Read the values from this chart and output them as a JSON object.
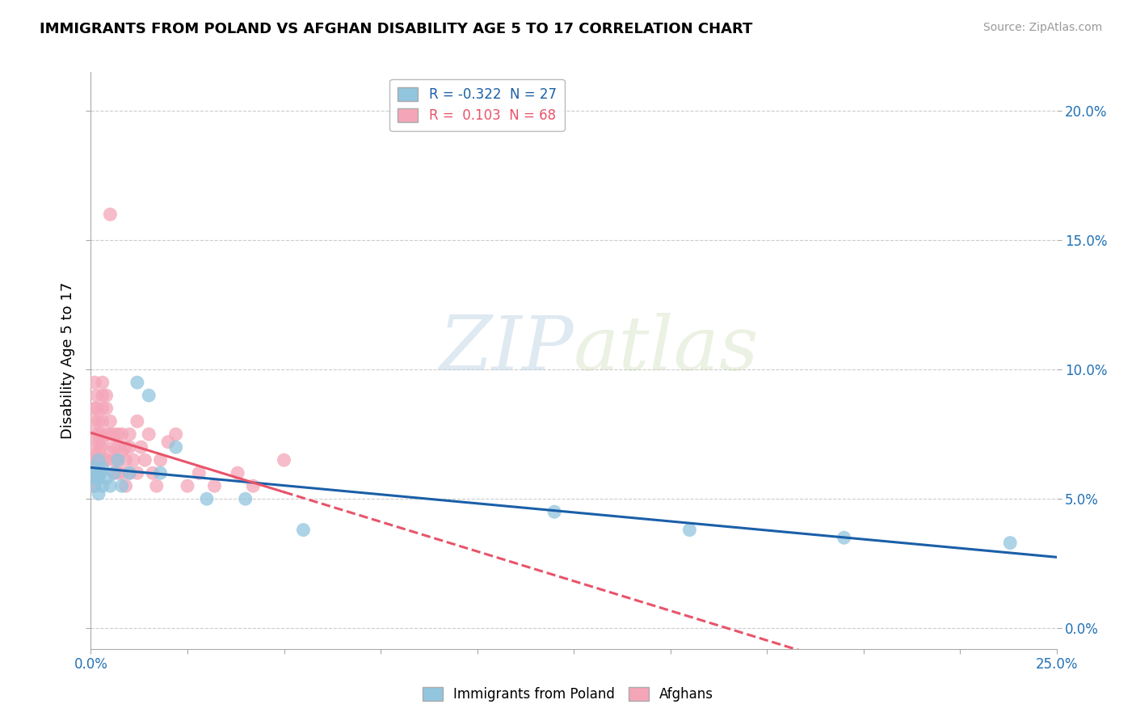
{
  "title": "IMMIGRANTS FROM POLAND VS AFGHAN DISABILITY AGE 5 TO 17 CORRELATION CHART",
  "source": "Source: ZipAtlas.com",
  "ylabel": "Disability Age 5 to 17",
  "xlim": [
    0.0,
    0.25
  ],
  "ylim": [
    -0.008,
    0.215
  ],
  "xticks": [
    0.0,
    0.025,
    0.05,
    0.075,
    0.1,
    0.125,
    0.15,
    0.175,
    0.2,
    0.225,
    0.25
  ],
  "yticks": [
    0.0,
    0.05,
    0.1,
    0.15,
    0.2
  ],
  "legend_blue_r": "-0.322",
  "legend_blue_n": "27",
  "legend_pink_r": "0.103",
  "legend_pink_n": "68",
  "blue_color": "#92c5de",
  "pink_color": "#f4a6b8",
  "blue_line_color": "#1a5fa8",
  "pink_line_color": "#e8546a",
  "watermark_zip": "ZIP",
  "watermark_atlas": "atlas",
  "poland_x": [
    0.0005,
    0.001,
    0.001,
    0.0015,
    0.002,
    0.002,
    0.002,
    0.0025,
    0.003,
    0.003,
    0.004,
    0.005,
    0.006,
    0.007,
    0.008,
    0.01,
    0.012,
    0.015,
    0.018,
    0.022,
    0.03,
    0.04,
    0.055,
    0.12,
    0.155,
    0.195,
    0.238
  ],
  "poland_y": [
    0.062,
    0.058,
    0.055,
    0.06,
    0.065,
    0.058,
    0.052,
    0.06,
    0.062,
    0.055,
    0.058,
    0.055,
    0.06,
    0.065,
    0.055,
    0.06,
    0.095,
    0.09,
    0.06,
    0.07,
    0.05,
    0.05,
    0.038,
    0.045,
    0.038,
    0.035,
    0.033
  ],
  "afghan_x": [
    0.0003,
    0.0005,
    0.0007,
    0.0008,
    0.001,
    0.001,
    0.001,
    0.001,
    0.001,
    0.001,
    0.0015,
    0.0015,
    0.002,
    0.002,
    0.002,
    0.002,
    0.002,
    0.002,
    0.0025,
    0.0025,
    0.003,
    0.003,
    0.003,
    0.003,
    0.003,
    0.003,
    0.004,
    0.004,
    0.004,
    0.004,
    0.005,
    0.005,
    0.005,
    0.005,
    0.006,
    0.006,
    0.006,
    0.006,
    0.007,
    0.007,
    0.007,
    0.007,
    0.008,
    0.008,
    0.008,
    0.009,
    0.009,
    0.009,
    0.01,
    0.01,
    0.01,
    0.011,
    0.012,
    0.012,
    0.013,
    0.014,
    0.015,
    0.016,
    0.017,
    0.018,
    0.02,
    0.022,
    0.025,
    0.028,
    0.032,
    0.038,
    0.042,
    0.05
  ],
  "afghan_y": [
    0.06,
    0.065,
    0.058,
    0.055,
    0.095,
    0.085,
    0.08,
    0.075,
    0.07,
    0.065,
    0.09,
    0.085,
    0.08,
    0.075,
    0.072,
    0.068,
    0.065,
    0.06,
    0.075,
    0.07,
    0.095,
    0.09,
    0.085,
    0.08,
    0.072,
    0.065,
    0.09,
    0.085,
    0.075,
    0.065,
    0.16,
    0.08,
    0.075,
    0.068,
    0.075,
    0.07,
    0.065,
    0.06,
    0.075,
    0.07,
    0.065,
    0.06,
    0.075,
    0.068,
    0.06,
    0.07,
    0.065,
    0.055,
    0.075,
    0.07,
    0.06,
    0.065,
    0.08,
    0.06,
    0.07,
    0.065,
    0.075,
    0.06,
    0.055,
    0.065,
    0.072,
    0.075,
    0.055,
    0.06,
    0.055,
    0.06,
    0.055,
    0.065
  ]
}
